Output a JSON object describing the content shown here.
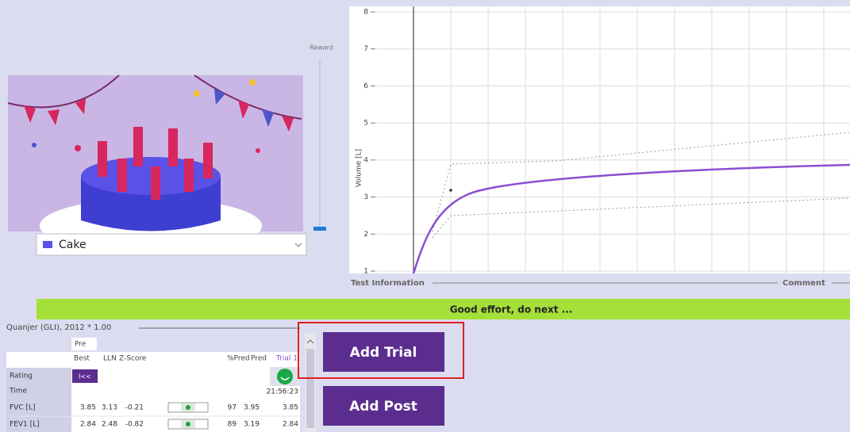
{
  "reward": {
    "label": "Reward"
  },
  "dropdown": {
    "selected": "Cake"
  },
  "volume_chart": {
    "y_label": "Volume [L]",
    "yticks": [
      1,
      2,
      3,
      4,
      5,
      6,
      7,
      8
    ]
  },
  "sections": {
    "test_information": "Test Information",
    "comment": "Comment"
  },
  "status": "Good effort, do next ...",
  "results": {
    "equation": "Quanjer (GLI), 2012 * 1.00",
    "group": "Pre",
    "columns": [
      "Best",
      "LLN",
      "Z-Score",
      "%Pred",
      "Pred",
      "Trial 1"
    ],
    "rating": {
      "label": "Rating",
      "best": "I<<"
    },
    "time": {
      "label": "Time",
      "trial": "21:56:23"
    },
    "rows": [
      {
        "label": "FVC [L]",
        "values": [
          3.85,
          3.13,
          -0.21,
          97,
          3.95,
          3.85
        ]
      },
      {
        "label": "FEV1 [L]",
        "values": [
          2.84,
          2.48,
          -0.82,
          89,
          3.19,
          2.84
        ]
      }
    ]
  },
  "buttons": [
    "Add Trial",
    "Add Post"
  ]
}
